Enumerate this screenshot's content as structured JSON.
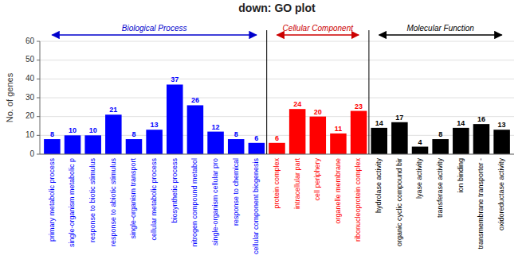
{
  "chart_data": {
    "type": "bar",
    "title": "down: GO plot",
    "y_label": "No. of genes",
    "ylim": [
      0,
      60
    ],
    "yticks": [
      0,
      10,
      20,
      30,
      40,
      50,
      60
    ],
    "grid": true,
    "data_labels": true,
    "categories": [
      "primary metabolic process",
      "single-organism metabolic p",
      "response to biotic stimulus",
      "response to abiotic stimulus",
      "single-organism transport",
      "cellular metabolic process",
      "biosynthetic process",
      "nitrogen compound metabol",
      "single-organism cellular pro",
      "response to chemical",
      "cellular component biogenesis",
      "protein complex",
      "intracellular part",
      "cell periphery",
      "organelle membrane",
      "ribonucleoprotein complex",
      "hydrolase activity",
      "organic cyclic compound bir",
      "lyase activity",
      "transferase activity",
      "ion binding",
      "transmembrane transporter -",
      "oxidoreductase activity"
    ],
    "values": [
      8,
      10,
      10,
      21,
      8,
      13,
      37,
      26,
      12,
      8,
      6,
      6,
      24,
      20,
      11,
      23,
      14,
      17,
      4,
      8,
      14,
      16,
      13
    ],
    "colors": [
      "#0000ff",
      "#0000ff",
      "#0000ff",
      "#0000ff",
      "#0000ff",
      "#0000ff",
      "#0000ff",
      "#0000ff",
      "#0000ff",
      "#0000ff",
      "#0000ff",
      "#ff0000",
      "#ff0000",
      "#ff0000",
      "#ff0000",
      "#ff0000",
      "#000000",
      "#000000",
      "#000000",
      "#000000",
      "#000000",
      "#000000",
      "#000000"
    ],
    "annotations": [
      {
        "text": "Biological Process",
        "color": "#0000cc",
        "range": [
          0,
          10
        ]
      },
      {
        "text": "Cellular Component",
        "color": "#cc0000",
        "range": [
          11,
          15
        ]
      },
      {
        "text": "Molecular Function",
        "color": "#000000",
        "range": [
          16,
          22
        ]
      }
    ]
  }
}
